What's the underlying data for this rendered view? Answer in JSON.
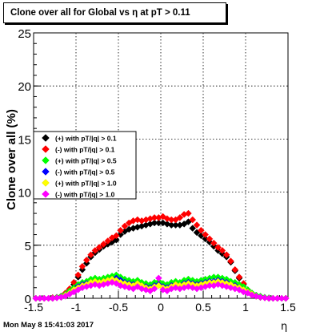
{
  "title": "Clone  over all for Global vs   η at pT > 0.11",
  "timestamp": "Mon May  8 15:41:03 2017",
  "chart_data": {
    "type": "scatter",
    "title": "Clone  over all for Global vs   η at pT > 0.11",
    "xlabel": "η",
    "ylabel": "Clone  over all (%)",
    "xlim": [
      -1.5,
      1.5
    ],
    "ylim": [
      0,
      25
    ],
    "x_ticks": [
      "-1.5",
      "-1",
      "-0.5",
      "0",
      "0.5",
      "1",
      "1.5"
    ],
    "y_ticks": [
      "0",
      "5",
      "10",
      "15",
      "20",
      "25"
    ],
    "grid": true,
    "legend_position": "left-middle",
    "x": [
      -1.475,
      -1.425,
      -1.375,
      -1.325,
      -1.275,
      -1.225,
      -1.175,
      -1.125,
      -1.075,
      -1.025,
      -0.975,
      -0.925,
      -0.875,
      -0.825,
      -0.775,
      -0.725,
      -0.675,
      -0.625,
      -0.575,
      -0.525,
      -0.475,
      -0.425,
      -0.375,
      -0.325,
      -0.275,
      -0.225,
      -0.175,
      -0.125,
      -0.075,
      -0.025,
      0.025,
      0.075,
      0.125,
      0.175,
      0.225,
      0.275,
      0.325,
      0.375,
      0.425,
      0.475,
      0.525,
      0.575,
      0.625,
      0.675,
      0.725,
      0.775,
      0.825,
      0.875,
      0.925,
      0.975,
      1.025,
      1.075,
      1.125,
      1.175,
      1.225,
      1.275,
      1.325,
      1.375,
      1.425,
      1.475
    ],
    "series": [
      {
        "name": "(+) with pT/|q| > 0.1",
        "color": "#000000",
        "values": [
          0.0,
          0.0,
          0.0,
          0.0,
          0.05,
          0.1,
          0.2,
          0.4,
          0.8,
          1.3,
          2.0,
          2.7,
          3.3,
          3.9,
          4.3,
          4.6,
          4.9,
          5.1,
          5.3,
          5.5,
          6.0,
          6.3,
          6.5,
          6.6,
          6.7,
          6.8,
          6.9,
          7.0,
          7.1,
          7.1,
          7.1,
          7.0,
          6.9,
          6.9,
          6.9,
          7.0,
          7.2,
          6.6,
          6.2,
          5.9,
          5.6,
          5.3,
          4.9,
          4.5,
          4.2,
          3.9,
          3.4,
          2.6,
          1.9,
          1.3,
          0.8,
          0.4,
          0.2,
          0.1,
          0.05,
          0.0,
          0.0,
          0.0,
          0.0,
          0.0
        ]
      },
      {
        "name": "(-) with pT/|q| > 0.1",
        "color": "#ff0000",
        "values": [
          0.0,
          0.0,
          0.0,
          0.0,
          0.05,
          0.1,
          0.2,
          0.5,
          0.9,
          1.5,
          2.2,
          3.0,
          3.6,
          4.1,
          4.5,
          4.8,
          5.1,
          5.4,
          5.7,
          5.9,
          6.4,
          6.8,
          7.1,
          7.3,
          7.4,
          7.3,
          7.4,
          7.5,
          7.6,
          7.6,
          7.7,
          7.5,
          7.4,
          7.4,
          7.6,
          7.9,
          8.0,
          7.4,
          6.9,
          6.4,
          6.0,
          5.6,
          5.2,
          4.8,
          4.5,
          4.1,
          3.5,
          2.7,
          2.0,
          1.4,
          0.8,
          0.4,
          0.2,
          0.1,
          0.05,
          0.0,
          0.0,
          0.0,
          0.0,
          0.0
        ]
      },
      {
        "name": "(+) with pT/|q| > 0.5",
        "color": "#00ff00",
        "values": [
          0.0,
          0.0,
          0.0,
          0.0,
          0.0,
          0.1,
          0.2,
          0.4,
          0.7,
          1.0,
          1.3,
          1.5,
          1.6,
          1.8,
          1.9,
          1.8,
          1.9,
          2.0,
          2.1,
          2.2,
          2.0,
          1.8,
          1.7,
          1.6,
          1.7,
          1.5,
          1.4,
          1.3,
          1.5,
          1.6,
          1.4,
          1.3,
          1.5,
          1.6,
          1.5,
          1.7,
          1.8,
          1.7,
          1.6,
          1.7,
          1.8,
          1.9,
          2.0,
          2.0,
          1.9,
          1.8,
          1.6,
          1.5,
          1.3,
          1.1,
          0.8,
          0.5,
          0.3,
          0.2,
          0.1,
          0.05,
          0.0,
          0.0,
          0.0,
          0.0
        ]
      },
      {
        "name": "(-) with pT/|q| > 0.5",
        "color": "#0000ff",
        "values": [
          0.0,
          0.0,
          0.0,
          0.0,
          0.0,
          0.05,
          0.1,
          0.3,
          0.5,
          0.8,
          1.1,
          1.3,
          1.4,
          1.5,
          1.6,
          1.5,
          1.6,
          1.7,
          1.8,
          1.9,
          1.7,
          1.5,
          1.4,
          1.3,
          1.4,
          1.2,
          1.1,
          1.0,
          1.2,
          1.3,
          1.1,
          1.0,
          1.2,
          1.3,
          1.2,
          1.4,
          1.5,
          1.4,
          1.3,
          1.4,
          1.5,
          1.6,
          1.6,
          1.7,
          1.6,
          1.5,
          1.3,
          1.2,
          1.0,
          0.8,
          0.6,
          0.4,
          0.2,
          0.1,
          0.05,
          0.0,
          0.0,
          0.0,
          0.0,
          0.0
        ]
      },
      {
        "name": "(+) with pT/|q| > 1.0",
        "color": "#ffff00",
        "values": [
          0.0,
          0.0,
          0.0,
          0.0,
          0.0,
          0.05,
          0.1,
          0.3,
          0.5,
          0.8,
          1.0,
          1.2,
          1.3,
          1.5,
          1.6,
          1.5,
          1.6,
          1.7,
          1.8,
          1.7,
          1.5,
          1.4,
          1.3,
          1.2,
          1.4,
          1.2,
          1.0,
          0.9,
          1.1,
          1.2,
          1.0,
          0.9,
          1.1,
          1.3,
          1.2,
          1.3,
          1.4,
          1.3,
          1.2,
          1.3,
          1.4,
          1.5,
          1.5,
          1.6,
          1.5,
          1.4,
          1.3,
          1.1,
          1.0,
          0.8,
          0.6,
          0.4,
          0.2,
          0.1,
          0.05,
          0.0,
          0.0,
          0.0,
          0.0,
          0.0
        ]
      },
      {
        "name": "(-) with pT/|q| > 1.0",
        "color": "#ff00ff",
        "values": [
          0.0,
          0.0,
          0.0,
          0.0,
          0.0,
          0.05,
          0.1,
          0.2,
          0.4,
          0.6,
          0.8,
          1.0,
          1.1,
          1.2,
          1.3,
          1.2,
          1.3,
          1.4,
          1.5,
          1.4,
          1.2,
          1.1,
          1.0,
          0.9,
          1.1,
          0.9,
          0.8,
          0.7,
          0.9,
          1.9,
          0.8,
          0.7,
          0.9,
          1.0,
          0.9,
          1.0,
          1.1,
          1.0,
          0.9,
          1.0,
          1.1,
          1.2,
          1.2,
          1.3,
          1.2,
          1.1,
          1.0,
          0.9,
          0.8,
          0.6,
          0.5,
          0.3,
          0.2,
          0.1,
          0.05,
          0.0,
          0.0,
          0.0,
          0.0,
          0.0
        ]
      }
    ]
  }
}
